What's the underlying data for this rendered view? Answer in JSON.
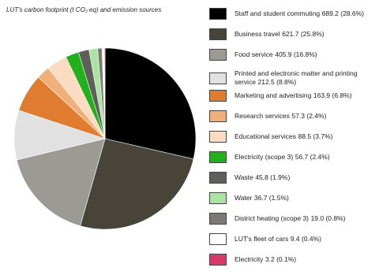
{
  "chart_data": {
    "type": "pie",
    "title": "LUT's carbon footprint (t CO₂ eq) and emission sources",
    "categories": [
      "Staff and student commuting",
      "Business travel",
      "Food service",
      "Printed and electronic matter and printing service",
      "Marketing and advertising",
      "Research services",
      "Educational services",
      "Electricity (scope 3)",
      "Waste",
      "Water",
      "District heating (scope 3)",
      "LUT's fleet of cars",
      "Electricity"
    ],
    "values": [
      689.2,
      621.7,
      405.9,
      212.5,
      163.9,
      57.3,
      88.5,
      56.7,
      45.8,
      36.7,
      19.0,
      9.4,
      3.2
    ],
    "value_labels": [
      "689.2 (28.6%)",
      "621.7 (25.8%)",
      "405.9 (16.8%)",
      "212.5 (8.8%)",
      "163.9 (6.8%)",
      "57.3 (2.4%)",
      "88.5 (3.7%)",
      "56.7 (2.4%)",
      "45,8 (1.9%)",
      "36.7 (1.5%)",
      "19.0 (0.8%)",
      "9.4 (0.4%)",
      "3.2 (0.1%)"
    ],
    "colors": [
      "#000000",
      "#48443a",
      "#9b9a95",
      "#e1e1e1",
      "#e07c30",
      "#f0b07c",
      "#fbdcc0",
      "#22b01d",
      "#5f5e5a",
      "#a9e5a0",
      "#7b7a76",
      "#ffffff",
      "#d6396a"
    ]
  }
}
